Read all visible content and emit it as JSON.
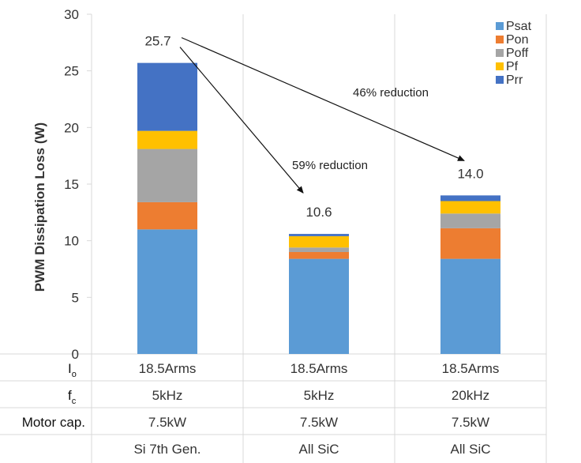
{
  "chart_data": {
    "type": "bar",
    "stacked": true,
    "ylabel": "PWM Dissipation  Loss (W)",
    "ylim": [
      0,
      30
    ],
    "yticks": [
      0,
      5,
      10,
      15,
      20,
      25,
      30
    ],
    "grid": "vertical-separators",
    "legend": "top-right",
    "categories": [
      "Si 7th Gen.",
      "All SiC",
      "All SiC"
    ],
    "series": [
      {
        "name": "Psat",
        "color": "#5B9BD5",
        "values": [
          11.0,
          8.4,
          8.4
        ]
      },
      {
        "name": "Pon",
        "color": "#ED7D31",
        "values": [
          2.4,
          0.6,
          2.7
        ]
      },
      {
        "name": "Poff",
        "color": "#A5A5A5",
        "values": [
          4.7,
          0.4,
          1.3
        ]
      },
      {
        "name": "Pf",
        "color": "#FFC000",
        "values": [
          1.6,
          1.0,
          1.1
        ]
      },
      {
        "name": "Prr",
        "color": "#4472C4",
        "values": [
          6.0,
          0.2,
          0.5
        ]
      }
    ],
    "totals": [
      "25.7",
      "10.6",
      "14.0"
    ],
    "annotations": [
      {
        "text": "59% reduction",
        "from_category": 0,
        "to_category": 1
      },
      {
        "text": "46% reduction",
        "from_category": 0,
        "to_category": 2
      }
    ],
    "table": {
      "rows": [
        {
          "label": "I",
          "label_sub": "o",
          "values": [
            "18.5Arms",
            "18.5Arms",
            "18.5Arms"
          ]
        },
        {
          "label": "f",
          "label_sub": "c",
          "values": [
            "5kHz",
            "5kHz",
            "20kHz"
          ]
        },
        {
          "label": "Motor cap.",
          "label_sub": "",
          "values": [
            "7.5kW",
            "7.5kW",
            "7.5kW"
          ]
        }
      ]
    }
  }
}
